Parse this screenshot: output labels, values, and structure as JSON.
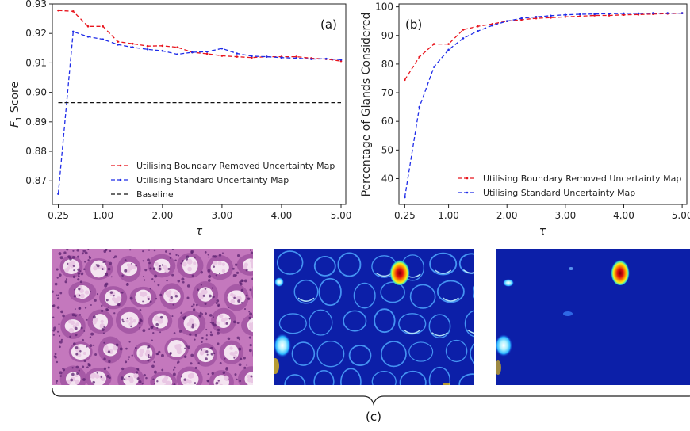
{
  "chart_data": [
    {
      "type": "line",
      "panel_label": "(a)",
      "xlabel": "τ",
      "ylabel_main": "F",
      "ylabel_sub": "1",
      "ylabel_rest": " Score",
      "xlim": [
        0.15,
        5.08
      ],
      "ylim": [
        0.862,
        0.93
      ],
      "xticks": [
        0.25,
        1.0,
        2.0,
        3.0,
        4.0,
        5.0
      ],
      "xtick_labels": [
        "0.25",
        "1.00",
        "2.00",
        "3.00",
        "4.00",
        "5.00"
      ],
      "yticks": [
        0.87,
        0.88,
        0.89,
        0.9,
        0.91,
        0.92,
        0.93
      ],
      "ytick_labels": [
        "0.87",
        "0.88",
        "0.89",
        "0.90",
        "0.91",
        "0.92",
        "0.93"
      ],
      "legend_position": "lower-right",
      "x": [
        0.25,
        0.5,
        0.75,
        1.0,
        1.25,
        1.5,
        1.75,
        2.0,
        2.25,
        2.5,
        2.75,
        3.0,
        3.25,
        3.5,
        3.75,
        4.0,
        4.25,
        4.5,
        4.75,
        5.0
      ],
      "series": [
        {
          "name": "Utilising Boundary Removed Uncertainty Map",
          "color": "#e8141c",
          "values": [
            0.9278,
            0.9275,
            0.9224,
            0.9224,
            0.9172,
            0.9165,
            0.9157,
            0.9158,
            0.9153,
            0.9136,
            0.9131,
            0.9124,
            0.9121,
            0.9118,
            0.9121,
            0.9121,
            0.9121,
            0.9116,
            0.9113,
            0.9106
          ]
        },
        {
          "name": "Utilising Standard Uncertainty Map",
          "color": "#1f2ce8",
          "values": [
            0.8656,
            0.9206,
            0.9189,
            0.918,
            0.9162,
            0.9153,
            0.9146,
            0.9141,
            0.9129,
            0.9136,
            0.9138,
            0.9149,
            0.9132,
            0.9123,
            0.9121,
            0.9118,
            0.9116,
            0.9113,
            0.9114,
            0.9111
          ]
        },
        {
          "name": "Baseline",
          "color": "#111111",
          "values": [
            0.8965,
            0.8965,
            0.8965,
            0.8965,
            0.8965,
            0.8965,
            0.8965,
            0.8965,
            0.8965,
            0.8965,
            0.8965,
            0.8965,
            0.8965,
            0.8965,
            0.8965,
            0.8965,
            0.8965,
            0.8965,
            0.8965,
            0.8965
          ]
        }
      ]
    },
    {
      "type": "line",
      "panel_label": "(b)",
      "xlabel": "τ",
      "ylabel": "Percentage of Glands Considered",
      "xlim": [
        0.15,
        5.08
      ],
      "ylim": [
        31,
        101
      ],
      "xticks": [
        0.25,
        1.0,
        2.0,
        3.0,
        4.0,
        5.0
      ],
      "xtick_labels": [
        "0.25",
        "1.00",
        "2.00",
        "3.00",
        "4.00",
        "5.00"
      ],
      "yticks": [
        40,
        50,
        60,
        70,
        80,
        90,
        100
      ],
      "ytick_labels": [
        "40",
        "50",
        "60",
        "70",
        "80",
        "90",
        "100"
      ],
      "legend_position": "lower-right",
      "x": [
        0.25,
        0.5,
        0.75,
        1.0,
        1.25,
        1.5,
        1.75,
        2.0,
        2.25,
        2.5,
        2.75,
        3.0,
        3.25,
        3.5,
        3.75,
        4.0,
        4.25,
        4.5,
        4.75,
        5.0
      ],
      "series": [
        {
          "name": "Utilising Boundary Removed Uncertainty Map",
          "color": "#e8141c",
          "values": [
            74.5,
            82.5,
            87.0,
            87.0,
            92.0,
            93.2,
            94.0,
            95.0,
            95.5,
            96.0,
            96.2,
            96.5,
            96.7,
            97.0,
            97.0,
            97.2,
            97.3,
            97.5,
            97.6,
            97.8
          ]
        },
        {
          "name": "Utilising Standard Uncertainty Map",
          "color": "#1f2ce8",
          "values": [
            33.5,
            65.0,
            79.0,
            85.0,
            89.0,
            91.5,
            93.5,
            95.0,
            96.0,
            96.5,
            96.9,
            97.2,
            97.4,
            97.5,
            97.6,
            97.7,
            97.7,
            97.8,
            97.8,
            97.8
          ]
        }
      ]
    }
  ],
  "bottom": {
    "brace_label": "(c)",
    "images": [
      {
        "name": "histology-image",
        "palette": "he-stain"
      },
      {
        "name": "standard-uncertainty-map",
        "palette": "jet"
      },
      {
        "name": "boundary-removed-uncertainty-map",
        "palette": "jet"
      }
    ]
  }
}
